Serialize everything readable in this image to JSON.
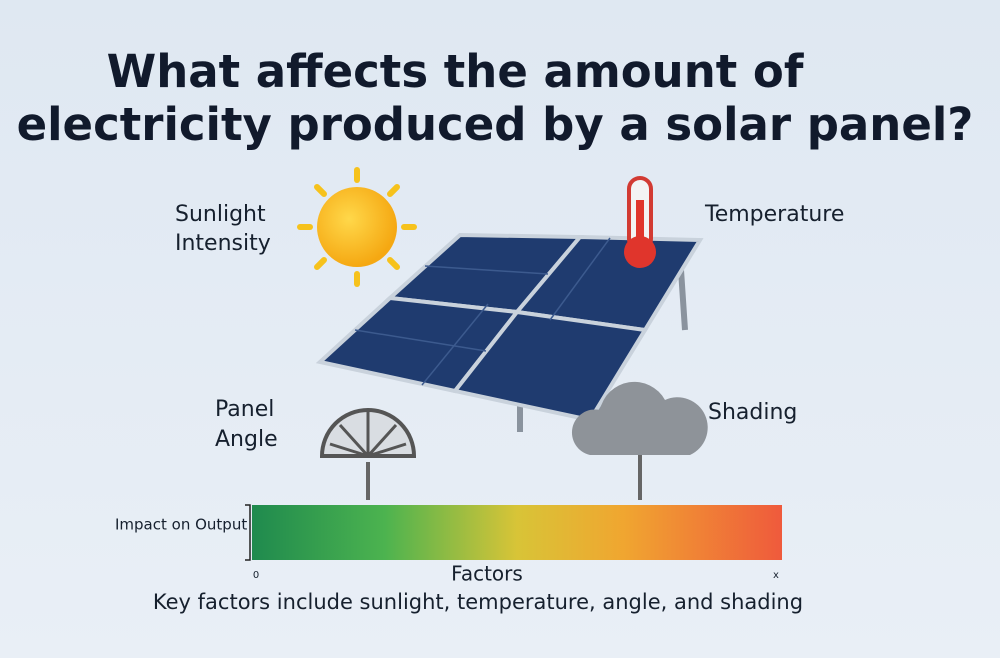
{
  "title": [
    "What affects the amount of",
    "electricity produced by a solar panel?"
  ],
  "factors": [
    {
      "label": [
        "Sunlight",
        "Intensity"
      ]
    },
    {
      "label": [
        "Temperature"
      ]
    },
    {
      "label": [
        "Panel",
        "Angle"
      ]
    },
    {
      "label": [
        "Shading"
      ]
    }
  ],
  "scale": {
    "axis_label": "Impact on Output",
    "start_label": "0",
    "end_label": "x",
    "title": "Factors"
  },
  "caption": "Key factors include sunlight, temperature, angle, and shading"
}
